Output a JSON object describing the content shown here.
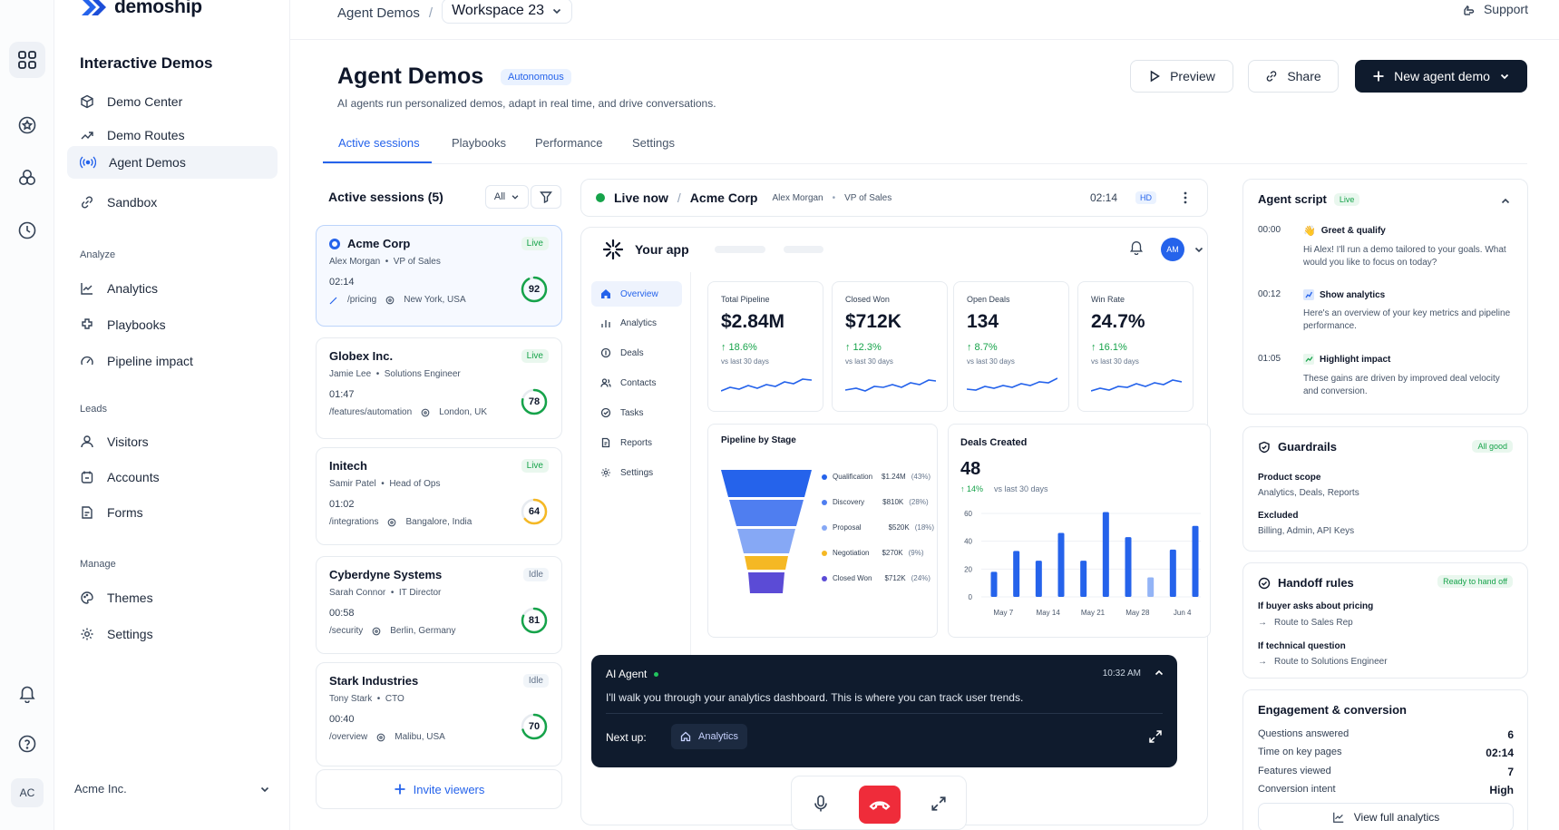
{
  "brand": "demoship",
  "topbar": {
    "crumb": "Agent Demos",
    "separator": "/",
    "workspace": "Workspace 23",
    "support": "Support"
  },
  "sidebar": {
    "title": "Interactive Demos",
    "items": [
      {
        "label": "Demo Center",
        "icon": "cube-icon"
      },
      {
        "label": "Demo Routes",
        "icon": "route-icon"
      },
      {
        "label": "Agent Demos",
        "icon": "broadcast-icon",
        "active": true
      },
      {
        "label": "Sandbox",
        "icon": "link-icon"
      }
    ],
    "analyze_label": "Analyze",
    "analyze": [
      {
        "label": "Analytics",
        "icon": "chart-line-icon"
      },
      {
        "label": "Playbooks",
        "icon": "puzzle-icon"
      },
      {
        "label": "Pipeline impact",
        "icon": "gauge-icon"
      }
    ],
    "leads_label": "Leads",
    "leads": [
      {
        "label": "Visitors",
        "icon": "user-icon"
      },
      {
        "label": "Accounts",
        "icon": "building-icon"
      },
      {
        "label": "Forms",
        "icon": "form-icon"
      }
    ],
    "manage_label": "Manage",
    "manage": [
      {
        "label": "Themes",
        "icon": "palette-icon"
      },
      {
        "label": "Settings",
        "icon": "gear-icon"
      }
    ],
    "org": "Acme Inc.",
    "avatar": "AC"
  },
  "header": {
    "title": "Agent Demos",
    "badge": "Autonomous",
    "subtitle": "AI agents run personalized demos, adapt in real time, and drive conversations.",
    "preview": "Preview",
    "share": "Share",
    "new_demo": "New agent demo"
  },
  "tabs": [
    "Active sessions",
    "Playbooks",
    "Performance",
    "Settings"
  ],
  "sessions": {
    "title": "Active sessions (5)",
    "filter": "All",
    "list": [
      {
        "company": "Acme Corp",
        "person": "Alex Morgan",
        "role": "VP of Sales",
        "time": "02:14",
        "path": "/pricing",
        "location": "New York, USA",
        "status": "Live",
        "score": "92",
        "score_value": 0.92,
        "color": "#16a34a"
      },
      {
        "company": "Globex Inc.",
        "person": "Jamie Lee",
        "role": "Solutions Engineer",
        "time": "01:47",
        "path": "/features/automation",
        "location": "London, UK",
        "status": "Live",
        "score": "78",
        "score_value": 0.78,
        "color": "#16a34a"
      },
      {
        "company": "Initech",
        "person": "Samir Patel",
        "role": "Head of Ops",
        "time": "01:02",
        "path": "/integrations",
        "location": "Bangalore, India",
        "status": "Live",
        "score": "64",
        "score_value": 0.64,
        "color": "#f5b824"
      },
      {
        "company": "Cyberdyne Systems",
        "person": "Sarah Connor",
        "role": "IT Director",
        "time": "00:58",
        "path": "/security",
        "location": "Berlin, Germany",
        "status": "Idle",
        "score": "81",
        "score_value": 0.81,
        "color": "#16a34a"
      },
      {
        "company": "Stark Industries",
        "person": "Tony Stark",
        "role": "CTO",
        "time": "00:40",
        "path": "/overview",
        "location": "Malibu, USA",
        "status": "Idle",
        "score": "70",
        "score_value": 0.7,
        "color": "#16a34a"
      }
    ],
    "invite": "Invite viewers"
  },
  "live": {
    "label": "Live now",
    "sep": "/",
    "company": "Acme Corp",
    "person": "Alex Morgan",
    "role": "VP of Sales",
    "time": "02:14",
    "quality": "HD"
  },
  "app": {
    "name": "Your app",
    "avatar": "AM",
    "nav": [
      "Overview",
      "Analytics",
      "Deals",
      "Contacts",
      "Tasks",
      "Reports",
      "Settings"
    ],
    "kpis": [
      {
        "label": "Total Pipeline",
        "value": "$2.84M",
        "delta": "↑ 18.6%",
        "vs": "vs last 30 days"
      },
      {
        "label": "Closed Won",
        "value": "$712K",
        "delta": "↑ 12.3%",
        "vs": "vs last 30 days"
      },
      {
        "label": "Open Deals",
        "value": "134",
        "delta": "↑ 8.7%",
        "vs": "vs last 30 days"
      },
      {
        "label": "Win Rate",
        "value": "24.7%",
        "delta": "↑ 16.1%",
        "vs": "vs last 30 days"
      }
    ],
    "pipeline": {
      "title": "Pipeline by Stage",
      "stages": [
        {
          "name": "Qualification",
          "value": "$1.24M",
          "pct": "(43%)",
          "color": "#2563eb"
        },
        {
          "name": "Discovery",
          "value": "$810K",
          "pct": "(28%)",
          "color": "#4f7ef0"
        },
        {
          "name": "Proposal",
          "value": "$520K",
          "pct": "(18%)",
          "color": "#86a8f5"
        },
        {
          "name": "Negotiation",
          "value": "$270K",
          "pct": "(9%)",
          "color": "#f5b824"
        },
        {
          "name": "Closed Won",
          "value": "$712K",
          "pct": "(24%)",
          "color": "#5b4bd6"
        }
      ]
    },
    "deals": {
      "title": "Deals Created",
      "value": "48",
      "delta": "↑ 14%",
      "vs": "vs last 30 days",
      "y_ticks": [
        "60",
        "40",
        "20",
        "0"
      ],
      "x_ticks": [
        "May 7",
        "May 14",
        "May 21",
        "May 28",
        "Jun 4"
      ]
    }
  },
  "chart_data": {
    "type": "bar",
    "title": "Deals Created",
    "ylim": [
      0,
      60
    ],
    "x_ticks": [
      "May 7",
      "May 14",
      "May 21",
      "May 28",
      "Jun 4"
    ],
    "values": [
      18,
      33,
      26,
      46,
      26,
      61,
      43,
      14,
      34,
      51
    ],
    "highlight_index": 7
  },
  "agent_msg": {
    "sender": "AI Agent",
    "time": "10:32 AM",
    "text": "I'll walk you through your analytics dashboard. This is where you can track user trends.",
    "next_label": "Next up:",
    "next_value": "Analytics"
  },
  "script": {
    "title": "Agent script",
    "badge": "Live",
    "steps": [
      {
        "time": "00:00",
        "icon": "wave-icon",
        "title": "Greet & qualify",
        "body": "Hi Alex! I'll run a demo tailored to your goals. What would you like to focus on today?"
      },
      {
        "time": "00:12",
        "icon": "analytics-icon",
        "title": "Show analytics",
        "body": "Here's an overview of your key metrics and pipeline performance."
      },
      {
        "time": "01:05",
        "icon": "impact-icon",
        "title": "Highlight impact",
        "body": "These gains are driven by improved deal velocity and conversion."
      }
    ]
  },
  "guardrails": {
    "title": "Guardrails",
    "badge": "All good",
    "scope_label": "Product scope",
    "scope": "Analytics, Deals, Reports",
    "excluded_label": "Excluded",
    "excluded": "Billing, Admin, API Keys"
  },
  "handoff": {
    "title": "Handoff rules",
    "badge": "Ready to hand off",
    "rules": [
      {
        "cond": "If buyer asks about pricing",
        "action": "Route to Sales Rep"
      },
      {
        "cond": "If technical question",
        "action": "Route to Solutions Engineer"
      }
    ]
  },
  "engagement": {
    "title": "Engagement & conversion",
    "rows": [
      {
        "label": "Questions answered",
        "value": "6"
      },
      {
        "label": "Time on key pages",
        "value": "02:14"
      },
      {
        "label": "Features viewed",
        "value": "7"
      },
      {
        "label": "Conversion intent",
        "value": "High"
      }
    ],
    "cta": "View full analytics"
  }
}
